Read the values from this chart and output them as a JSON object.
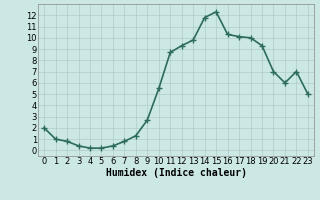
{
  "x": [
    0,
    1,
    2,
    3,
    4,
    5,
    6,
    7,
    8,
    9,
    10,
    11,
    12,
    13,
    14,
    15,
    16,
    17,
    18,
    19,
    20,
    21,
    22,
    23
  ],
  "y": [
    2.0,
    1.0,
    0.8,
    0.4,
    0.2,
    0.2,
    0.4,
    0.8,
    1.3,
    2.7,
    5.5,
    8.7,
    9.3,
    9.8,
    11.8,
    12.3,
    10.3,
    10.1,
    10.0,
    9.3,
    7.0,
    6.0,
    7.0,
    5.0
  ],
  "line_color": "#2d6b5e",
  "marker": "+",
  "marker_size": 4,
  "xlabel": "Humidex (Indice chaleur)",
  "xlim": [
    -0.5,
    23.5
  ],
  "ylim": [
    -0.5,
    13.0
  ],
  "yticks": [
    0,
    1,
    2,
    3,
    4,
    5,
    6,
    7,
    8,
    9,
    10,
    11,
    12
  ],
  "xticks": [
    0,
    1,
    2,
    3,
    4,
    5,
    6,
    7,
    8,
    9,
    10,
    11,
    12,
    13,
    14,
    15,
    16,
    17,
    18,
    19,
    20,
    21,
    22,
    23
  ],
  "background_color": "#cce8e4",
  "grid_color": "#b0ccc8",
  "xlabel_fontsize": 7,
  "tick_fontsize": 6,
  "line_width": 1.2
}
